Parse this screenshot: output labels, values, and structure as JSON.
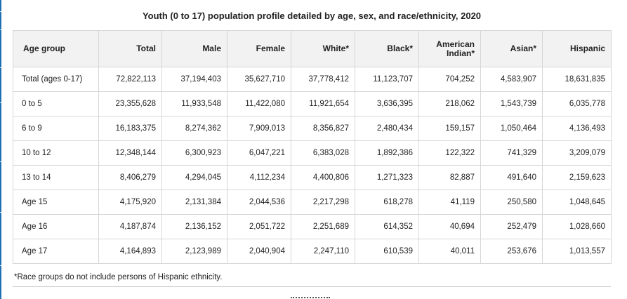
{
  "title": "Youth (0 to 17) population profile detailed by age, sex, and race/ethnicity, 2020",
  "table": {
    "headers": [
      "Age group",
      "Total",
      "Male",
      "Female",
      "White*",
      "Black*",
      "American Indian*",
      "Asian*",
      "Hispanic"
    ],
    "rows": [
      [
        "Total (ages 0-17)",
        "72,822,113",
        "37,194,403",
        "35,627,710",
        "37,778,412",
        "11,123,707",
        "704,252",
        "4,583,907",
        "18,631,835"
      ],
      [
        "0 to 5",
        "23,355,628",
        "11,933,548",
        "11,422,080",
        "11,921,654",
        "3,636,395",
        "218,062",
        "1,543,739",
        "6,035,778"
      ],
      [
        "6 to 9",
        "16,183,375",
        "8,274,362",
        "7,909,013",
        "8,356,827",
        "2,480,434",
        "159,157",
        "1,050,464",
        "4,136,493"
      ],
      [
        "10 to 12",
        "12,348,144",
        "6,300,923",
        "6,047,221",
        "6,383,028",
        "1,892,386",
        "122,322",
        "741,329",
        "3,209,079"
      ],
      [
        "13 to 14",
        "8,406,279",
        "4,294,045",
        "4,112,234",
        "4,400,806",
        "1,271,323",
        "82,887",
        "491,640",
        "2,159,623"
      ],
      [
        "Age 15",
        "4,175,920",
        "2,131,384",
        "2,044,536",
        "2,217,298",
        "618,278",
        "41,119",
        "250,580",
        "1,048,645"
      ],
      [
        "Age 16",
        "4,187,874",
        "2,136,152",
        "2,051,722",
        "2,251,689",
        "614,352",
        "40,694",
        "252,479",
        "1,028,660"
      ],
      [
        "Age 17",
        "4,164,893",
        "2,123,989",
        "2,040,904",
        "2,247,110",
        "610,539",
        "40,011",
        "253,676",
        "1,013,557"
      ]
    ]
  },
  "footnote": "*Race groups do not include persons of Hispanic ethnicity.",
  "colors": {
    "header_bg": "#f2f2f2",
    "border": "#d6d6d6",
    "accent_strip": "#1f6fb2"
  }
}
